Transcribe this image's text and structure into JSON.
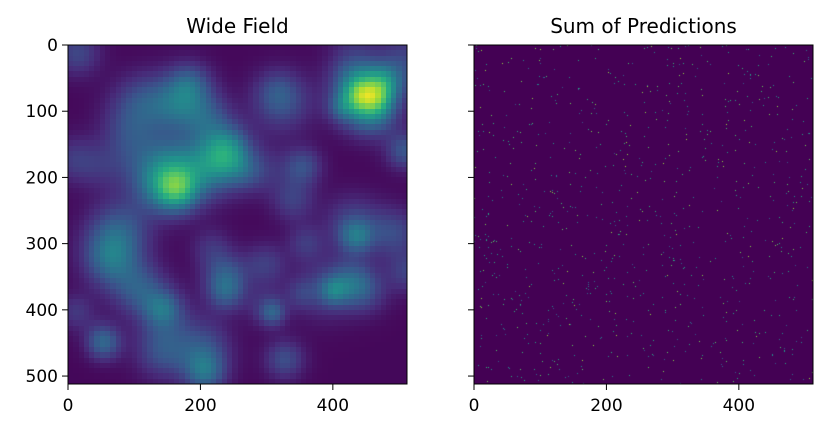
{
  "chart_data": [
    {
      "type": "heatmap",
      "title": "Wide Field",
      "colormap": "viridis",
      "xlabel": "",
      "ylabel": "",
      "xlim": [
        0,
        512
      ],
      "ylim": [
        512,
        0
      ],
      "x_ticks": [
        0,
        200,
        400
      ],
      "y_ticks": [
        0,
        100,
        200,
        300,
        400,
        500
      ],
      "image_size": [
        512,
        512
      ],
      "description": "smooth blob-like intensity field",
      "value_range": [
        0.0,
        1.0
      ]
    },
    {
      "type": "heatmap",
      "title": "Sum of Predictions",
      "colormap": "viridis",
      "xlabel": "",
      "ylabel": "",
      "xlim": [
        0,
        512
      ],
      "ylim": [
        512,
        0
      ],
      "x_ticks": [
        0,
        200,
        400
      ],
      "y_ticks": [
        0,
        100,
        200,
        300,
        400,
        500
      ],
      "y_tick_labels_visible": false,
      "image_size": [
        512,
        512
      ],
      "description": "sparse bright points on dark background",
      "value_range": [
        0.0,
        1.0
      ]
    }
  ]
}
